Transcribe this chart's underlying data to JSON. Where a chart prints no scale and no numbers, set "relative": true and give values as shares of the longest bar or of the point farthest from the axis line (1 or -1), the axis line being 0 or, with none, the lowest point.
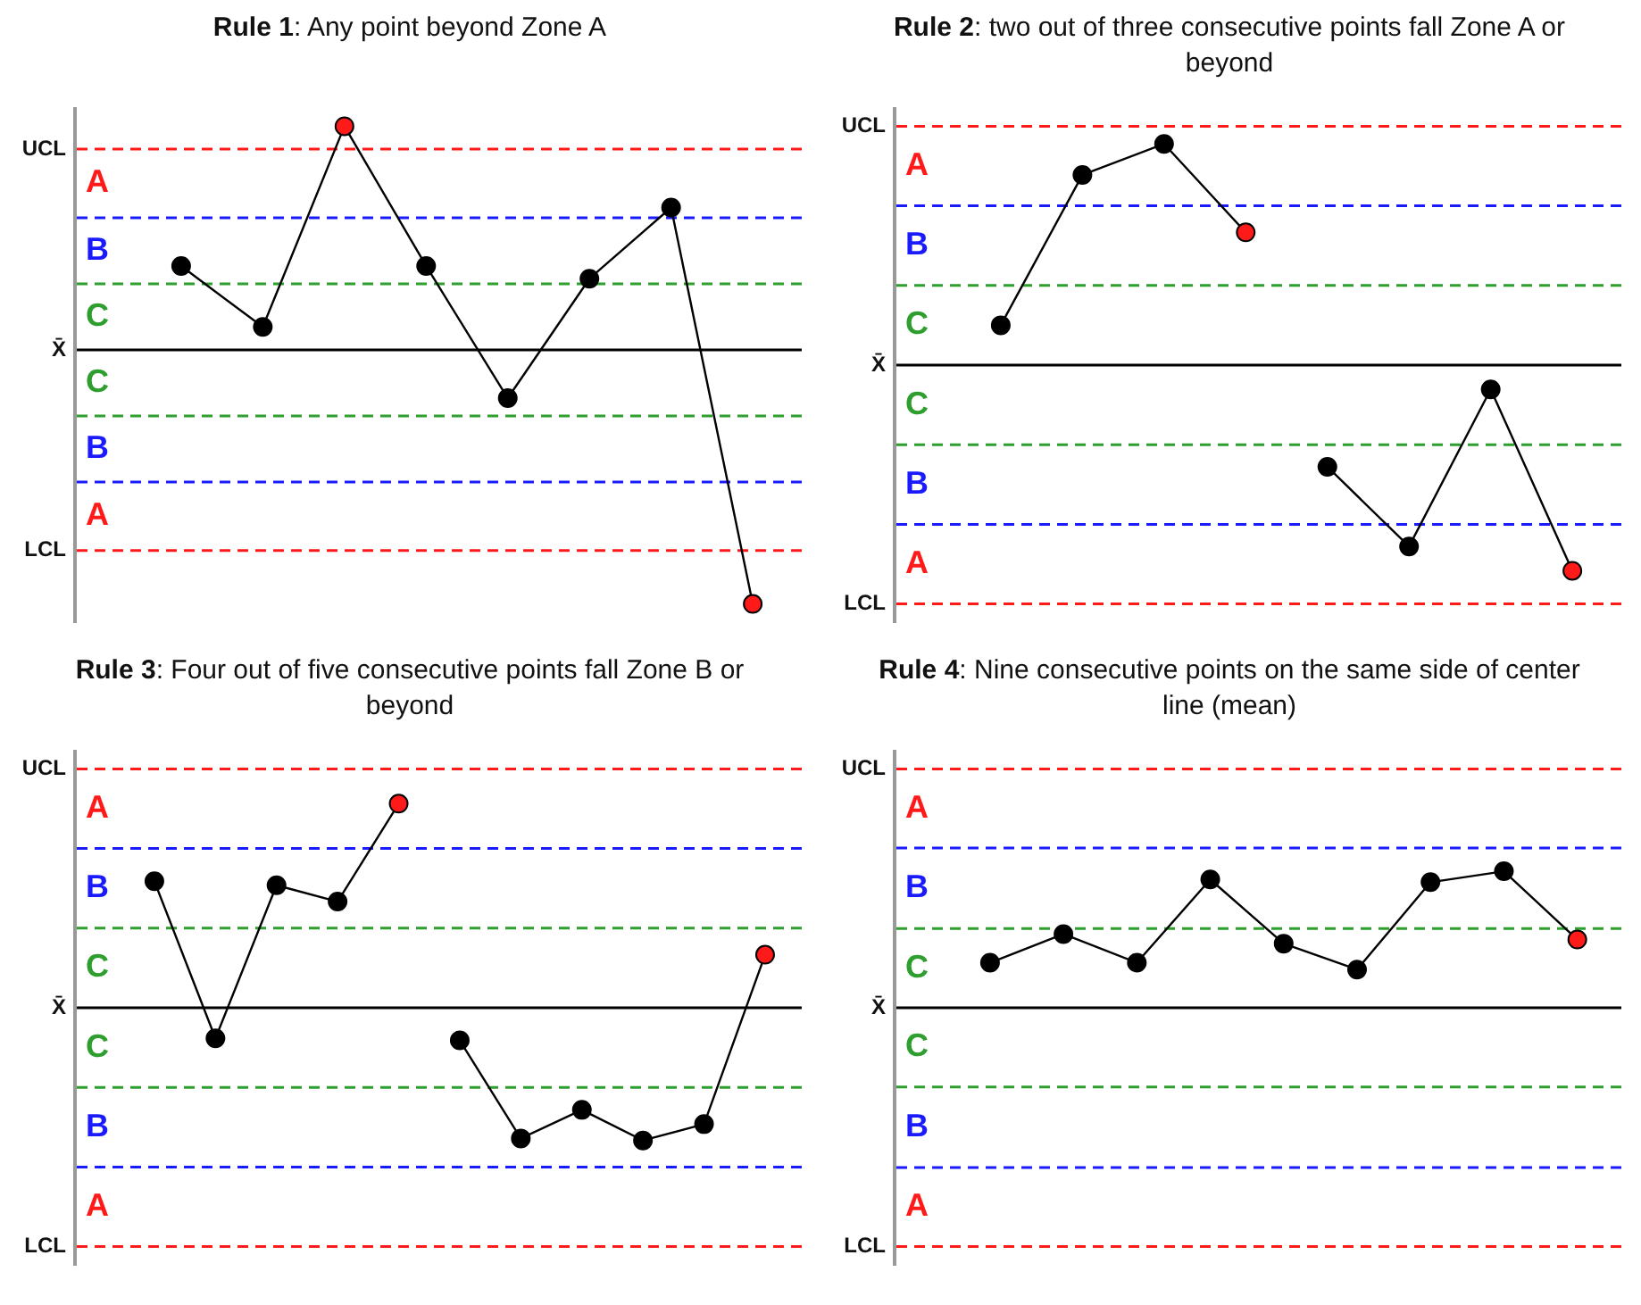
{
  "chart_data": [
    {
      "type": "line",
      "title": "Rule 1: Any point beyond Zone A",
      "categories": [
        null,
        null,
        null,
        null,
        null,
        null,
        null,
        null
      ],
      "relative": true,
      "series": [
        {
          "color": "#000000",
          "colors": [
            "#000000",
            "#000000",
            "#ff1a1a",
            "#000000",
            "#000000",
            "#000000",
            "#000000",
            "#ff1a1a"
          ],
          "values": [
            0.33,
            0.09,
            0.88,
            0.33,
            -0.19,
            0.28,
            0.56,
            -1
          ]
        }
      ],
      "legend": false,
      "marker": "circle",
      "ref_lines": [
        {
          "axis": "y",
          "value": 0.79,
          "label": "UCL",
          "color": "#ff1a1a",
          "line_style": "dashed"
        },
        {
          "axis": "y",
          "value": 0.52,
          "color": "#1a1aff",
          "line_style": "dashed"
        },
        {
          "axis": "y",
          "value": 0.26,
          "color": "#2e9e2e",
          "line_style": "dashed"
        },
        {
          "axis": "y",
          "value": 0,
          "label": "X̄",
          "color": "#000000",
          "line_style": "solid"
        },
        {
          "axis": "y",
          "value": -0.26,
          "color": "#2e9e2e",
          "line_style": "dashed"
        },
        {
          "axis": "y",
          "value": -0.52,
          "color": "#1a1aff",
          "line_style": "dashed"
        },
        {
          "axis": "y",
          "value": -0.79,
          "label": "LCL",
          "color": "#ff1a1a",
          "line_style": "dashed"
        }
      ],
      "annotations": [
        "A",
        "B",
        "C",
        "C",
        "B",
        "A"
      ]
    },
    {
      "type": "line",
      "title": "Rule 2: two out of three consecutive points fall Zone A or beyond",
      "categories": [
        null,
        null,
        null,
        null,
        null,
        null,
        null,
        null
      ],
      "relative": true,
      "series": [
        {
          "color": "#000000",
          "colors": [
            "#000000",
            "#000000",
            "#000000",
            "#ff1a1a",
            null,
            null,
            null,
            null
          ],
          "values": [
            0.18,
            0.86,
            1,
            0.6,
            null,
            null,
            null,
            null
          ]
        },
        {
          "color": "#000000",
          "colors": [
            null,
            null,
            null,
            null,
            "#000000",
            "#000000",
            "#000000",
            "#ff1a1a"
          ],
          "values": [
            null,
            null,
            null,
            null,
            -0.46,
            -0.82,
            -0.11,
            -0.93
          ]
        }
      ],
      "legend": false,
      "marker": "circle",
      "ref_lines": [
        {
          "axis": "y",
          "value": 1.08,
          "label": "UCL",
          "color": "#ff1a1a",
          "line_style": "dashed"
        },
        {
          "axis": "y",
          "value": 0.72,
          "color": "#1a1aff",
          "line_style": "dashed"
        },
        {
          "axis": "y",
          "value": 0.36,
          "color": "#2e9e2e",
          "line_style": "dashed"
        },
        {
          "axis": "y",
          "value": 0,
          "label": "X̄",
          "color": "#000000",
          "line_style": "solid"
        },
        {
          "axis": "y",
          "value": -0.36,
          "color": "#2e9e2e",
          "line_style": "dashed"
        },
        {
          "axis": "y",
          "value": -0.72,
          "color": "#1a1aff",
          "line_style": "dashed"
        },
        {
          "axis": "y",
          "value": -1.08,
          "label": "LCL",
          "color": "#ff1a1a",
          "line_style": "dashed"
        }
      ],
      "annotations": [
        "A",
        "B",
        "C",
        "C",
        "B",
        "A"
      ]
    },
    {
      "type": "line",
      "title": "Rule 3: Four out of five consecutive points fall Zone B or beyond",
      "categories": [
        null,
        null,
        null,
        null,
        null,
        null,
        null,
        null,
        null,
        null,
        null
      ],
      "relative": true,
      "series": [
        {
          "color": "#000000",
          "colors": [
            "#000000",
            "#000000",
            "#000000",
            "#000000",
            "#ff1a1a",
            null,
            null,
            null,
            null,
            null,
            null
          ],
          "values": [
            0.62,
            -0.15,
            0.6,
            0.52,
            1,
            null,
            null,
            null,
            null,
            null,
            null
          ]
        },
        {
          "color": "#000000",
          "colors": [
            null,
            null,
            null,
            null,
            null,
            "#000000",
            "#000000",
            "#000000",
            "#000000",
            "#000000",
            "#ff1a1a"
          ],
          "values": [
            null,
            null,
            null,
            null,
            null,
            -0.16,
            -0.64,
            -0.5,
            -0.65,
            -0.57,
            0.26
          ]
        }
      ],
      "legend": false,
      "marker": "circle",
      "ref_lines": [
        {
          "axis": "y",
          "value": 1.17,
          "label": "UCL",
          "color": "#ff1a1a",
          "line_style": "dashed"
        },
        {
          "axis": "y",
          "value": 0.78,
          "color": "#1a1aff",
          "line_style": "dashed"
        },
        {
          "axis": "y",
          "value": 0.39,
          "color": "#2e9e2e",
          "line_style": "dashed"
        },
        {
          "axis": "y",
          "value": 0,
          "label": "X̄",
          "color": "#000000",
          "line_style": "solid"
        },
        {
          "axis": "y",
          "value": -0.39,
          "color": "#2e9e2e",
          "line_style": "dashed"
        },
        {
          "axis": "y",
          "value": -0.78,
          "color": "#1a1aff",
          "line_style": "dashed"
        },
        {
          "axis": "y",
          "value": -1.17,
          "label": "LCL",
          "color": "#ff1a1a",
          "line_style": "dashed"
        }
      ],
      "annotations": [
        "A",
        "B",
        "C",
        "C",
        "B",
        "A"
      ]
    },
    {
      "type": "line",
      "title": "Rule 4: Nine consecutive points on the same side of center line (mean)",
      "categories": [
        null,
        null,
        null,
        null,
        null,
        null,
        null,
        null,
        null
      ],
      "relative": true,
      "series": [
        {
          "color": "#000000",
          "colors": [
            "#000000",
            "#000000",
            "#000000",
            "#000000",
            "#000000",
            "#000000",
            "#000000",
            "#000000",
            "#ff1a1a"
          ],
          "values": [
            0.33,
            0.54,
            0.33,
            0.94,
            0.47,
            0.28,
            0.92,
            1,
            0.5
          ]
        }
      ],
      "legend": false,
      "marker": "circle",
      "ref_lines": [
        {
          "axis": "y",
          "value": 1.75,
          "label": "UCL",
          "color": "#ff1a1a",
          "line_style": "dashed"
        },
        {
          "axis": "y",
          "value": 1.17,
          "color": "#1a1aff",
          "line_style": "dashed"
        },
        {
          "axis": "y",
          "value": 0.58,
          "color": "#2e9e2e",
          "line_style": "dashed"
        },
        {
          "axis": "y",
          "value": 0,
          "label": "X̄",
          "color": "#000000",
          "line_style": "solid"
        },
        {
          "axis": "y",
          "value": -0.58,
          "color": "#2e9e2e",
          "line_style": "dashed"
        },
        {
          "axis": "y",
          "value": -1.17,
          "color": "#1a1aff",
          "line_style": "dashed"
        },
        {
          "axis": "y",
          "value": -1.75,
          "label": "LCL",
          "color": "#ff1a1a",
          "line_style": "dashed"
        }
      ],
      "annotations": [
        "A",
        "B",
        "C",
        "C",
        "B",
        "A"
      ]
    }
  ]
}
